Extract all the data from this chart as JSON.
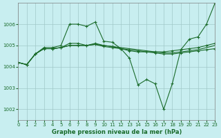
{
  "xlabel": "Graphe pression niveau de la mer (hPa)",
  "background_color": "#c8eef0",
  "grid_color": "#a0c8c8",
  "line_color": "#1a6b2a",
  "ylim": [
    1001.5,
    1007.0
  ],
  "xlim": [
    0,
    23
  ],
  "yticks": [
    1002,
    1003,
    1004,
    1005,
    1006
  ],
  "xticks": [
    0,
    1,
    2,
    3,
    4,
    5,
    6,
    7,
    8,
    9,
    10,
    11,
    12,
    13,
    14,
    15,
    16,
    17,
    18,
    19,
    20,
    21,
    22,
    23
  ],
  "series": [
    {
      "x": [
        0,
        1,
        2,
        3,
        4,
        5,
        6,
        7,
        8,
        9,
        10,
        11,
        12,
        13,
        14,
        15,
        16,
        17,
        18,
        19,
        20,
        21,
        22,
        23
      ],
      "y": [
        1004.2,
        1004.1,
        1004.6,
        1004.9,
        1004.9,
        1005.0,
        1006.0,
        1006.0,
        1005.9,
        1006.1,
        1005.2,
        1005.15,
        1004.85,
        1004.4,
        1003.15,
        1003.4,
        1003.2,
        1002.0,
        1003.2,
        1004.8,
        1005.3,
        1005.4,
        1006.0,
        1007.0
      ],
      "marker": "+"
    },
    {
      "x": [
        0,
        1,
        2,
        3,
        4,
        5,
        6,
        7,
        8,
        9,
        10,
        11,
        12,
        13,
        14,
        15,
        16,
        17,
        18,
        19,
        20,
        21,
        22,
        23
      ],
      "y": [
        1004.2,
        1004.1,
        1004.6,
        1004.85,
        1004.85,
        1004.9,
        1005.1,
        1005.1,
        1005.0,
        1005.1,
        1005.0,
        1004.95,
        1004.85,
        1004.75,
        1004.7,
        1004.7,
        1004.7,
        1004.7,
        1004.75,
        1004.8,
        1004.85,
        1004.9,
        1005.0,
        1005.1
      ],
      "marker": "+"
    },
    {
      "x": [
        0,
        1,
        2,
        3,
        4,
        5,
        6,
        7,
        8,
        9,
        10,
        11,
        12,
        13,
        14,
        15,
        16,
        17,
        18,
        19,
        20,
        21,
        22,
        23
      ],
      "y": [
        1004.2,
        1004.1,
        1004.6,
        1004.85,
        1004.85,
        1004.9,
        1005.0,
        1005.0,
        1005.0,
        1005.05,
        1004.95,
        1004.9,
        1004.85,
        1004.8,
        1004.75,
        1004.7,
        1004.65,
        1004.6,
        1004.6,
        1004.65,
        1004.7,
        1004.75,
        1004.8,
        1004.85
      ],
      "marker": "+"
    },
    {
      "x": [
        0,
        1,
        2,
        3,
        4,
        5,
        6,
        7,
        8,
        9,
        10,
        11,
        12,
        13,
        14,
        15,
        16,
        17,
        18,
        19,
        20,
        21,
        22,
        23
      ],
      "y": [
        1004.2,
        1004.1,
        1004.6,
        1004.85,
        1004.85,
        1004.9,
        1005.0,
        1005.0,
        1005.0,
        1005.05,
        1005.0,
        1004.95,
        1004.9,
        1004.85,
        1004.8,
        1004.75,
        1004.7,
        1004.65,
        1004.65,
        1004.7,
        1004.75,
        1004.8,
        1004.9,
        1005.0
      ],
      "marker": null
    }
  ]
}
